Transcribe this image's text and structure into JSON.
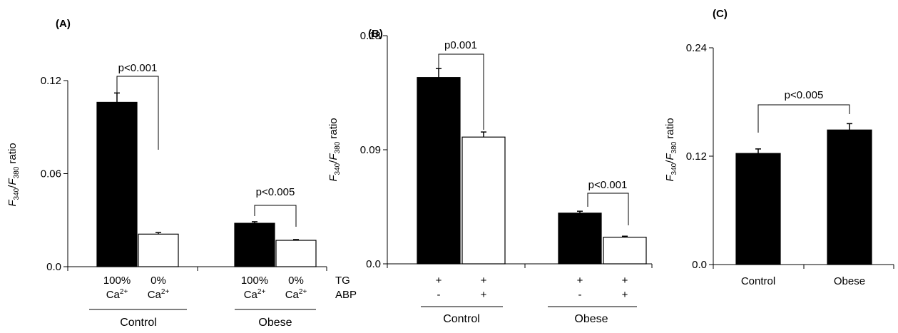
{
  "chart_data": [
    {
      "type": "bar",
      "panel": "(A)",
      "ylabel": {
        "f1": "F",
        "sub1": "340",
        "slash": "/",
        "f2": "F",
        "sub2": "380",
        "rest": " ratio"
      },
      "ylim": [
        0,
        0.12
      ],
      "yticks": [
        {
          "value": 0,
          "label": "0.0"
        },
        {
          "value": 0.06,
          "label": "0.06"
        },
        {
          "value": 0.12,
          "label": "0.12"
        }
      ],
      "bars": [
        {
          "value": 0.106,
          "err": 0.006,
          "color": "#000000",
          "line1": "100%",
          "base": "Ca",
          "sup": "2+"
        },
        {
          "value": 0.021,
          "err": 0.001,
          "color": "#ffffff",
          "line1": "0%",
          "base": "Ca",
          "sup": "2+"
        },
        {
          "value": 0.028,
          "err": 0.001,
          "color": "#000000",
          "line1": "100%",
          "base": "Ca",
          "sup": "2+"
        },
        {
          "value": 0.017,
          "err": 0.0005,
          "color": "#ffffff",
          "line1": "0%",
          "base": "Ca",
          "sup": "2+"
        }
      ],
      "groups": [
        "Control",
        "Obese"
      ],
      "annotations": [
        "p<0.001",
        "p<0.005"
      ]
    },
    {
      "type": "bar",
      "panel": "(B)",
      "ylabel": {
        "f1": "F",
        "sub1": "340",
        "slash": "/",
        "f2": "F",
        "sub2": "380",
        "rest": " ratio"
      },
      "ylim": [
        0,
        0.18
      ],
      "yticks": [
        {
          "value": 0,
          "label": "0.0"
        },
        {
          "value": 0.09,
          "label": "0.09"
        },
        {
          "value": 0.18,
          "label": "0.18"
        }
      ],
      "bars": [
        {
          "value": 0.147,
          "err": 0.007,
          "color": "#000000",
          "tg": "+",
          "abp": "-"
        },
        {
          "value": 0.1,
          "err": 0.004,
          "color": "#ffffff",
          "tg": "+",
          "abp": "+"
        },
        {
          "value": 0.04,
          "err": 0.0015,
          "color": "#000000",
          "tg": "+",
          "abp": "-"
        },
        {
          "value": 0.021,
          "err": 0.0008,
          "color": "#ffffff",
          "tg": "+",
          "abp": "+"
        }
      ],
      "row_labels": [
        "TG",
        "ABP"
      ],
      "groups": [
        "Control",
        "Obese"
      ],
      "annotations": [
        "p0.001",
        "p<0.001"
      ]
    },
    {
      "type": "bar",
      "panel": "(C)",
      "ylabel": {
        "f1": "F",
        "sub1": "340",
        "slash": "/",
        "f2": "F",
        "sub2": "380",
        "rest": " ratio"
      },
      "ylim": [
        0,
        0.24
      ],
      "yticks": [
        {
          "value": 0,
          "label": "0.0"
        },
        {
          "value": 0.12,
          "label": "0.12"
        },
        {
          "value": 0.24,
          "label": "0.24"
        }
      ],
      "bars": [
        {
          "value": 0.123,
          "err": 0.005,
          "color": "#000000",
          "label": "Control"
        },
        {
          "value": 0.149,
          "err": 0.007,
          "color": "#000000",
          "label": "Obese"
        }
      ],
      "annotations": [
        "p<0.005"
      ]
    }
  ]
}
